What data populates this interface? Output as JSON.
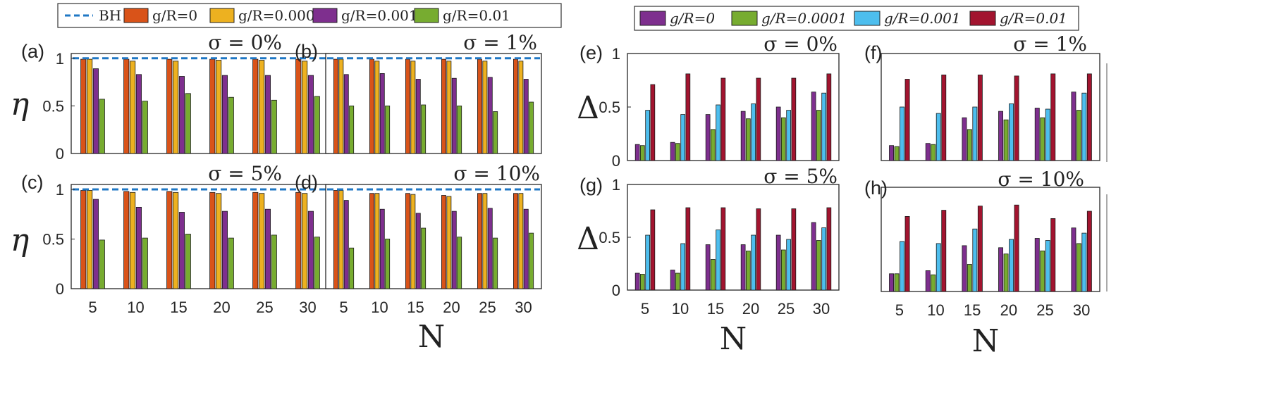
{
  "legend_left": {
    "entries": [
      {
        "label": "BH",
        "color": "#1f77c4",
        "kind": "dashed"
      },
      {
        "label": "g/R=0",
        "color": "#d95319",
        "kind": "box"
      },
      {
        "label": "g/R=0.0001",
        "color": "#edb120",
        "kind": "box"
      },
      {
        "label": "g/R=0.001",
        "color": "#7e2f8e",
        "kind": "box"
      },
      {
        "label": "g/R=0.01",
        "color": "#77ac30",
        "kind": "box"
      }
    ]
  },
  "legend_right": {
    "entries": [
      {
        "label": "g/R=0",
        "color": "#7e2f8e"
      },
      {
        "label": "g/R=0.0001",
        "color": "#77ac30"
      },
      {
        "label": "g/R=0.001",
        "color": "#4dbeee"
      },
      {
        "label": "g/R=0.01",
        "color": "#a2142f"
      }
    ]
  },
  "chart_data": [
    {
      "panel": "(a)",
      "sigma": "σ = 0%",
      "type": "bar",
      "categories": [
        "5",
        "10",
        "15",
        "20",
        "25",
        "30"
      ],
      "ylabel": "η",
      "xlabel": "",
      "ylim": [
        0,
        1.05
      ],
      "yticks": [
        "0",
        "0.5",
        "1"
      ],
      "bh_line": 1.0,
      "series": [
        {
          "name": "g/R=0",
          "values": [
            0.99,
            0.99,
            0.99,
            0.99,
            0.99,
            0.99
          ]
        },
        {
          "name": "g/R=0.0001",
          "values": [
            0.99,
            0.97,
            0.97,
            0.98,
            0.98,
            0.97
          ]
        },
        {
          "name": "g/R=0.001",
          "values": [
            0.89,
            0.83,
            0.81,
            0.82,
            0.82,
            0.82
          ]
        },
        {
          "name": "g/R=0.01",
          "values": [
            0.57,
            0.55,
            0.63,
            0.59,
            0.56,
            0.6
          ]
        }
      ]
    },
    {
      "panel": "(b)",
      "sigma": "σ = 1%",
      "type": "bar",
      "categories": [
        "5",
        "10",
        "15",
        "20",
        "25",
        "30"
      ],
      "ylabel": "",
      "xlabel": "",
      "ylim": [
        0,
        1.05
      ],
      "yticks": [],
      "bh_line": 1.0,
      "series": [
        {
          "name": "g/R=0",
          "values": [
            0.99,
            0.99,
            0.99,
            0.99,
            0.99,
            0.99
          ]
        },
        {
          "name": "g/R=0.0001",
          "values": [
            0.99,
            0.97,
            0.97,
            0.97,
            0.97,
            0.97
          ]
        },
        {
          "name": "g/R=0.001",
          "values": [
            0.83,
            0.84,
            0.78,
            0.79,
            0.8,
            0.78
          ]
        },
        {
          "name": "g/R=0.01",
          "values": [
            0.5,
            0.5,
            0.51,
            0.5,
            0.44,
            0.54
          ]
        }
      ]
    },
    {
      "panel": "(c)",
      "sigma": "σ = 5%",
      "type": "bar",
      "categories": [
        "5",
        "10",
        "15",
        "20",
        "25",
        "30"
      ],
      "ylabel": "η",
      "xlabel": "",
      "ylim": [
        0,
        1.05
      ],
      "yticks": [
        "0",
        "0.5",
        "1"
      ],
      "bh_line": 1.0,
      "series": [
        {
          "name": "g/R=0",
          "values": [
            0.99,
            0.98,
            0.98,
            0.97,
            0.97,
            0.97
          ]
        },
        {
          "name": "g/R=0.0001",
          "values": [
            0.99,
            0.97,
            0.97,
            0.96,
            0.96,
            0.96
          ]
        },
        {
          "name": "g/R=0.001",
          "values": [
            0.9,
            0.82,
            0.77,
            0.78,
            0.8,
            0.78
          ]
        },
        {
          "name": "g/R=0.01",
          "values": [
            0.49,
            0.51,
            0.55,
            0.51,
            0.54,
            0.52
          ]
        }
      ]
    },
    {
      "panel": "(d)",
      "sigma": "σ = 10%",
      "type": "bar",
      "categories": [
        "5",
        "10",
        "15",
        "20",
        "25",
        "30"
      ],
      "ylabel": "",
      "xlabel": "N",
      "ylim": [
        0,
        1.05
      ],
      "yticks": [],
      "bh_line": 1.0,
      "series": [
        {
          "name": "g/R=0",
          "values": [
            0.99,
            0.96,
            0.96,
            0.94,
            0.96,
            0.96
          ]
        },
        {
          "name": "g/R=0.0001",
          "values": [
            0.99,
            0.96,
            0.95,
            0.93,
            0.96,
            0.96
          ]
        },
        {
          "name": "g/R=0.001",
          "values": [
            0.89,
            0.8,
            0.76,
            0.78,
            0.81,
            0.8
          ]
        },
        {
          "name": "g/R=0.01",
          "values": [
            0.41,
            0.5,
            0.61,
            0.52,
            0.51,
            0.56
          ]
        }
      ]
    },
    {
      "panel": "(e)",
      "sigma": "σ = 0%",
      "type": "bar",
      "categories": [
        "5",
        "10",
        "15",
        "20",
        "25",
        "30"
      ],
      "ylabel": "Δ",
      "xlabel": "",
      "ylim": [
        0,
        1
      ],
      "yticks": [
        "0",
        "0.5",
        "1"
      ],
      "series": [
        {
          "name": "g/R=0",
          "values": [
            0.15,
            0.17,
            0.43,
            0.46,
            0.5,
            0.64
          ]
        },
        {
          "name": "g/R=0.0001",
          "values": [
            0.14,
            0.16,
            0.29,
            0.39,
            0.4,
            0.47
          ]
        },
        {
          "name": "g/R=0.001",
          "values": [
            0.47,
            0.43,
            0.52,
            0.53,
            0.47,
            0.63
          ]
        },
        {
          "name": "g/R=0.01",
          "values": [
            0.71,
            0.81,
            0.77,
            0.77,
            0.77,
            0.81
          ]
        }
      ]
    },
    {
      "panel": "(f)",
      "sigma": "σ = 1%",
      "type": "bar",
      "categories": [
        "5",
        "10",
        "15",
        "20",
        "25",
        "30"
      ],
      "ylabel": "",
      "xlabel": "",
      "ylim": [
        0,
        1
      ],
      "yticks": [],
      "series": [
        {
          "name": "g/R=0",
          "values": [
            0.14,
            0.16,
            0.4,
            0.46,
            0.49,
            0.64
          ]
        },
        {
          "name": "g/R=0.0001",
          "values": [
            0.13,
            0.15,
            0.29,
            0.38,
            0.4,
            0.47
          ]
        },
        {
          "name": "g/R=0.001",
          "values": [
            0.5,
            0.44,
            0.5,
            0.53,
            0.48,
            0.63
          ]
        },
        {
          "name": "g/R=0.01",
          "values": [
            0.76,
            0.8,
            0.8,
            0.79,
            0.81,
            0.81
          ]
        }
      ]
    },
    {
      "panel": "(g)",
      "sigma": "σ = 5%",
      "type": "bar",
      "categories": [
        "5",
        "10",
        "15",
        "20",
        "25",
        "30"
      ],
      "ylabel": "Δ",
      "xlabel": "N",
      "ylim": [
        0,
        1
      ],
      "yticks": [
        "0",
        "0.5",
        "1"
      ],
      "series": [
        {
          "name": "g/R=0",
          "values": [
            0.16,
            0.19,
            0.43,
            0.43,
            0.52,
            0.64
          ]
        },
        {
          "name": "g/R=0.0001",
          "values": [
            0.15,
            0.16,
            0.29,
            0.37,
            0.38,
            0.47
          ]
        },
        {
          "name": "g/R=0.001",
          "values": [
            0.52,
            0.44,
            0.57,
            0.52,
            0.48,
            0.59
          ]
        },
        {
          "name": "g/R=0.01",
          "values": [
            0.76,
            0.78,
            0.78,
            0.77,
            0.77,
            0.78
          ]
        }
      ]
    },
    {
      "panel": "(h)",
      "sigma": "σ = 10%",
      "type": "bar",
      "categories": [
        "5",
        "10",
        "15",
        "20",
        "25",
        "30"
      ],
      "ylabel": "",
      "xlabel": "N",
      "ylim": [
        0,
        1
      ],
      "yticks": [],
      "series": [
        {
          "name": "g/R=0",
          "values": [
            0.17,
            0.2,
            0.44,
            0.42,
            0.51,
            0.61
          ]
        },
        {
          "name": "g/R=0.0001",
          "values": [
            0.17,
            0.16,
            0.26,
            0.36,
            0.39,
            0.46
          ]
        },
        {
          "name": "g/R=0.001",
          "values": [
            0.48,
            0.46,
            0.6,
            0.5,
            0.49,
            0.56
          ]
        },
        {
          "name": "g/R=0.01",
          "values": [
            0.72,
            0.78,
            0.82,
            0.83,
            0.7,
            0.77
          ]
        }
      ]
    }
  ]
}
